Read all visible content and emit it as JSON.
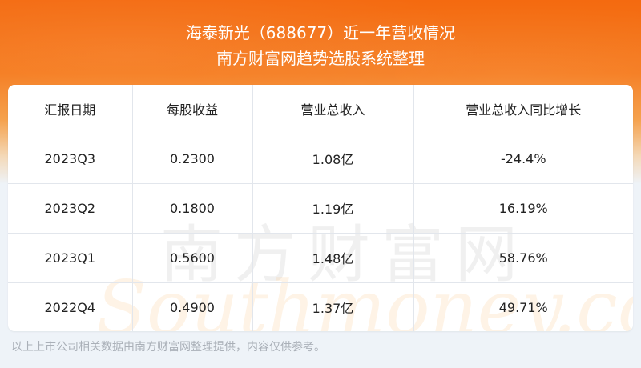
{
  "header": {
    "title": "海泰新光（688677）近一年营收情况",
    "subtitle": "南方财富网趋势选股系统整理"
  },
  "watermark": {
    "cn": "南方财富网",
    "en": "Southmoney.com"
  },
  "chart_data": {
    "type": "table",
    "columns": [
      "汇报日期",
      "每股收益",
      "营业总收入",
      "营业总收入同比增长"
    ],
    "rows": [
      [
        "2023Q3",
        "0.2300",
        "1.08亿",
        "-24.4%"
      ],
      [
        "2023Q2",
        "0.1800",
        "1.19亿",
        "16.19%"
      ],
      [
        "2023Q1",
        "0.5600",
        "1.48亿",
        "58.76%"
      ],
      [
        "2022Q4",
        "0.4900",
        "1.37亿",
        "49.71%"
      ]
    ]
  },
  "footer": "以上上市公司相关数据由南方财富网整理提供，内容仅供参考。",
  "colors": {
    "banner": "#f46a10",
    "background": "#eef3f8"
  }
}
